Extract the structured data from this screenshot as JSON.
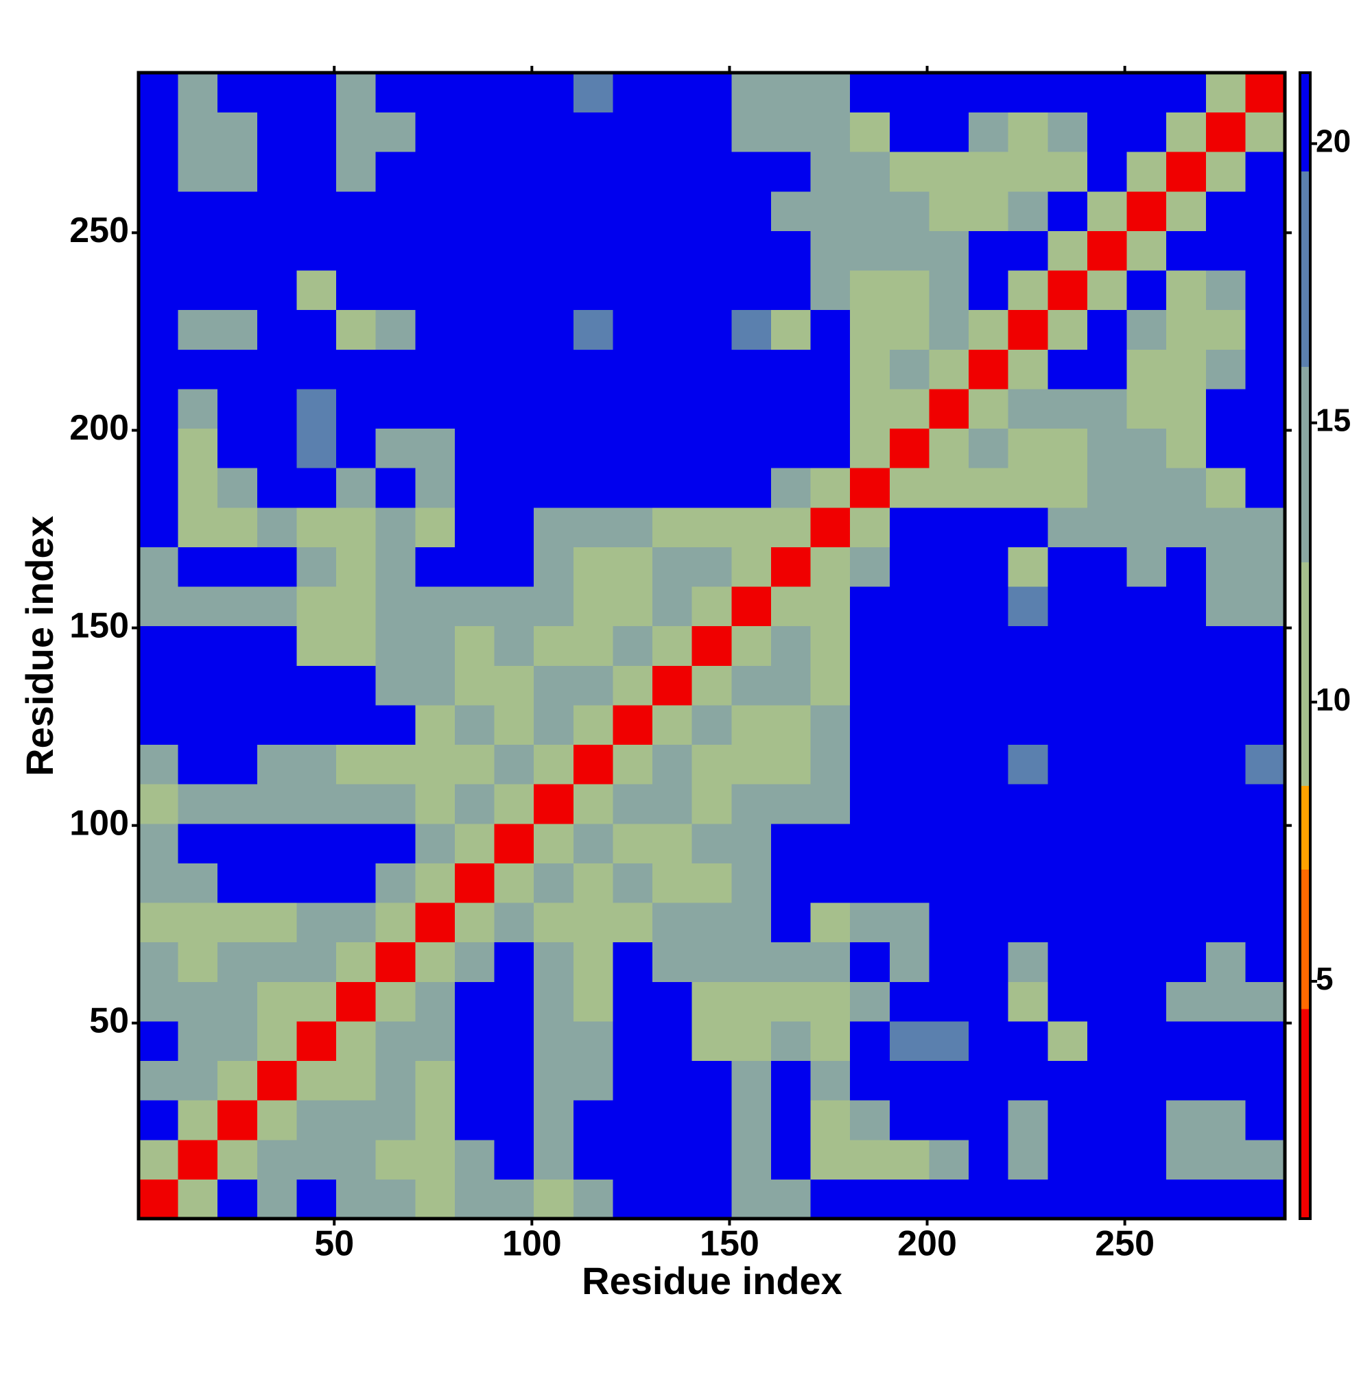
{
  "chart_data": {
    "type": "heatmap",
    "x_label": "Residue index",
    "y_label": "Residue index",
    "xlim": [
      0.5,
      290.5
    ],
    "ylim": [
      0.5,
      290.5
    ],
    "xticks": [
      50,
      100,
      150,
      200,
      250
    ],
    "yticks": [
      50,
      100,
      150,
      200,
      250
    ],
    "x_edges": [
      0.5,
      10.5,
      20.5,
      30.5,
      40.5,
      50.5,
      60.5,
      70.5,
      80.5,
      90.5,
      100.5,
      110.5,
      120.5,
      130.5,
      140.5,
      150.5,
      160.5,
      170.5,
      180.5,
      190.5,
      200.5,
      210.5,
      220.5,
      230.5,
      240.5,
      250.5,
      260.5,
      270.5,
      280.5,
      290.5
    ],
    "y_edges": [
      0.5,
      10.5,
      20.5,
      30.5,
      40.5,
      50.5,
      60.5,
      70.5,
      80.5,
      90.5,
      100.5,
      110.5,
      120.5,
      130.5,
      140.5,
      150.5,
      160.5,
      170.5,
      180.5,
      190.5,
      200.5,
      210.5,
      220.5,
      230.5,
      240.5,
      250.5,
      260.5,
      270.5,
      280.5,
      290.5
    ],
    "values": [
      [
        4,
        12,
        21,
        14,
        21,
        15,
        13,
        10,
        14,
        14,
        12,
        13,
        21,
        21,
        21,
        14,
        15,
        21,
        21,
        21,
        21,
        21,
        21,
        21,
        21,
        21,
        21,
        21,
        21
      ],
      [
        12,
        4,
        12,
        13,
        13,
        15,
        12,
        10,
        15,
        21,
        14,
        21,
        21,
        21,
        21,
        15,
        21,
        12,
        10,
        12,
        15,
        21,
        14,
        21,
        21,
        21,
        15,
        15,
        15
      ],
      [
        21,
        12,
        4,
        12,
        13,
        13,
        13,
        11,
        21,
        21,
        15,
        21,
        21,
        21,
        21,
        15,
        21,
        12,
        14,
        21,
        21,
        21,
        14,
        21,
        21,
        21,
        15,
        15,
        21
      ],
      [
        14,
        13,
        12,
        4,
        12,
        12,
        13,
        12,
        21,
        21,
        15,
        15,
        21,
        21,
        21,
        15,
        21,
        15,
        21,
        21,
        21,
        21,
        21,
        21,
        21,
        21,
        21,
        21,
        21
      ],
      [
        21,
        13,
        13,
        12,
        4,
        12,
        13,
        14,
        21,
        21,
        13,
        13,
        21,
        21,
        11,
        11,
        13,
        12,
        21,
        19,
        18,
        21,
        21,
        10,
        21,
        21,
        21,
        21,
        21
      ],
      [
        15,
        15,
        13,
        12,
        12,
        4,
        12,
        13,
        21,
        21,
        13,
        12,
        21,
        21,
        11,
        10,
        12,
        10,
        14,
        21,
        21,
        21,
        12,
        21,
        21,
        21,
        15,
        15,
        15
      ],
      [
        13,
        12,
        13,
        13,
        13,
        12,
        4,
        12,
        13,
        21,
        14,
        12,
        21,
        14,
        14,
        13,
        15,
        13,
        21,
        15,
        21,
        21,
        13,
        21,
        21,
        21,
        21,
        15,
        21
      ],
      [
        10,
        10,
        11,
        12,
        14,
        13,
        12,
        4,
        12,
        13,
        12,
        10,
        12,
        13,
        13,
        15,
        21,
        12,
        13,
        15,
        21,
        21,
        21,
        21,
        21,
        21,
        21,
        21,
        21
      ],
      [
        14,
        15,
        21,
        21,
        21,
        21,
        13,
        12,
        4,
        12,
        13,
        11,
        13,
        11,
        12,
        14,
        21,
        21,
        21,
        21,
        21,
        21,
        21,
        21,
        21,
        21,
        21,
        21,
        21
      ],
      [
        14,
        21,
        21,
        21,
        21,
        21,
        21,
        13,
        12,
        4,
        12,
        13,
        12,
        12,
        13,
        15,
        21,
        21,
        21,
        21,
        21,
        21,
        21,
        21,
        21,
        21,
        21,
        21,
        21
      ],
      [
        12,
        14,
        15,
        15,
        13,
        13,
        14,
        12,
        13,
        12,
        4,
        12,
        13,
        13,
        12,
        13,
        13,
        14,
        21,
        21,
        21,
        21,
        21,
        21,
        21,
        21,
        21,
        21,
        21
      ],
      [
        13,
        21,
        21,
        15,
        13,
        12,
        12,
        10,
        11,
        13,
        12,
        4,
        12,
        13,
        10,
        10,
        12,
        14,
        21,
        21,
        21,
        21,
        18,
        21,
        21,
        21,
        21,
        21,
        19
      ],
      [
        21,
        21,
        21,
        21,
        21,
        21,
        21,
        12,
        13,
        12,
        13,
        12,
        4,
        12,
        13,
        10,
        12,
        14,
        21,
        21,
        21,
        21,
        21,
        21,
        21,
        21,
        21,
        21,
        21
      ],
      [
        21,
        21,
        21,
        21,
        21,
        21,
        14,
        13,
        11,
        12,
        13,
        13,
        12,
        4,
        12,
        13,
        13,
        12,
        21,
        21,
        21,
        21,
        21,
        21,
        21,
        21,
        21,
        21,
        21
      ],
      [
        21,
        21,
        21,
        21,
        11,
        11,
        14,
        13,
        12,
        13,
        12,
        10,
        13,
        12,
        4,
        12,
        13,
        12,
        21,
        21,
        21,
        21,
        21,
        21,
        21,
        21,
        21,
        21,
        21
      ],
      [
        14,
        15,
        15,
        15,
        11,
        10,
        13,
        15,
        14,
        15,
        13,
        10,
        10,
        13,
        12,
        4,
        12,
        12,
        21,
        21,
        21,
        21,
        18,
        21,
        21,
        21,
        21,
        14,
        14
      ],
      [
        15,
        21,
        21,
        21,
        13,
        12,
        15,
        21,
        21,
        21,
        13,
        12,
        12,
        13,
        13,
        12,
        4,
        12,
        13,
        21,
        21,
        21,
        10,
        21,
        21,
        15,
        21,
        13,
        13
      ],
      [
        21,
        12,
        12,
        15,
        12,
        10,
        13,
        12,
        21,
        21,
        14,
        14,
        14,
        12,
        12,
        12,
        12,
        4,
        12,
        21,
        21,
        21,
        21,
        15,
        15,
        14,
        14,
        13,
        14
      ],
      [
        21,
        10,
        14,
        21,
        21,
        14,
        21,
        13,
        21,
        21,
        21,
        21,
        21,
        21,
        21,
        21,
        13,
        12,
        4,
        12,
        12,
        12,
        11,
        11,
        13,
        13,
        13,
        12,
        21
      ],
      [
        21,
        12,
        21,
        21,
        19,
        21,
        15,
        15,
        21,
        21,
        21,
        21,
        21,
        21,
        21,
        21,
        21,
        21,
        12,
        4,
        12,
        13,
        12,
        12,
        13,
        13,
        12,
        21,
        21
      ],
      [
        21,
        15,
        21,
        21,
        18,
        21,
        21,
        21,
        21,
        21,
        21,
        21,
        21,
        21,
        21,
        21,
        21,
        21,
        12,
        12,
        4,
        12,
        13,
        13,
        14,
        11,
        12,
        21,
        21
      ],
      [
        21,
        21,
        21,
        21,
        21,
        21,
        21,
        21,
        21,
        21,
        21,
        21,
        21,
        21,
        21,
        21,
        21,
        21,
        12,
        13,
        12,
        4,
        12,
        21,
        21,
        12,
        12,
        13,
        21
      ],
      [
        21,
        14,
        14,
        21,
        21,
        12,
        13,
        21,
        21,
        21,
        21,
        18,
        21,
        21,
        21,
        18,
        10,
        21,
        11,
        12,
        13,
        12,
        4,
        12,
        21,
        13,
        12,
        12,
        21
      ],
      [
        21,
        21,
        21,
        21,
        10,
        21,
        21,
        21,
        21,
        21,
        21,
        21,
        21,
        21,
        21,
        21,
        21,
        15,
        11,
        12,
        13,
        21,
        12,
        4,
        12,
        21,
        12,
        13,
        21
      ],
      [
        21,
        21,
        21,
        21,
        21,
        21,
        21,
        21,
        21,
        21,
        21,
        21,
        21,
        21,
        21,
        21,
        21,
        15,
        13,
        13,
        14,
        21,
        21,
        12,
        4,
        12,
        21,
        21,
        21
      ],
      [
        21,
        21,
        21,
        21,
        21,
        21,
        21,
        21,
        21,
        21,
        21,
        21,
        21,
        21,
        21,
        21,
        15,
        14,
        13,
        13,
        11,
        12,
        13,
        21,
        12,
        4,
        12,
        21,
        21
      ],
      [
        21,
        15,
        15,
        21,
        21,
        15,
        21,
        21,
        21,
        21,
        21,
        21,
        21,
        21,
        21,
        21,
        21,
        14,
        13,
        12,
        12,
        12,
        12,
        12,
        21,
        12,
        4,
        12,
        21
      ],
      [
        21,
        15,
        15,
        21,
        21,
        15,
        15,
        21,
        21,
        21,
        21,
        21,
        21,
        21,
        21,
        14,
        13,
        13,
        12,
        21,
        21,
        13,
        12,
        13,
        21,
        21,
        12,
        4,
        12
      ],
      [
        21,
        15,
        21,
        21,
        21,
        15,
        21,
        21,
        21,
        21,
        21,
        19,
        21,
        21,
        21,
        14,
        13,
        14,
        21,
        21,
        21,
        21,
        21,
        21,
        21,
        21,
        21,
        12,
        4
      ]
    ],
    "colorbar": {
      "ylim": [
        0.75,
        21.27
      ],
      "yticks": [
        5,
        10,
        15,
        20
      ],
      "bands": [
        {
          "min": 0.75,
          "max": 4.5,
          "color": "#f00000"
        },
        {
          "min": 4.5,
          "max": 7,
          "color": "#ff6a00"
        },
        {
          "min": 7,
          "max": 8.5,
          "color": "#ffa200"
        },
        {
          "min": 8.5,
          "max": 12.5,
          "color": "#a6bf8c"
        },
        {
          "min": 12.5,
          "max": 16,
          "color": "#8aa7a2"
        },
        {
          "min": 16,
          "max": 19.5,
          "color": "#5b80ae"
        },
        {
          "min": 19.5,
          "max": 21.27,
          "color": "#0000ee"
        }
      ]
    }
  }
}
